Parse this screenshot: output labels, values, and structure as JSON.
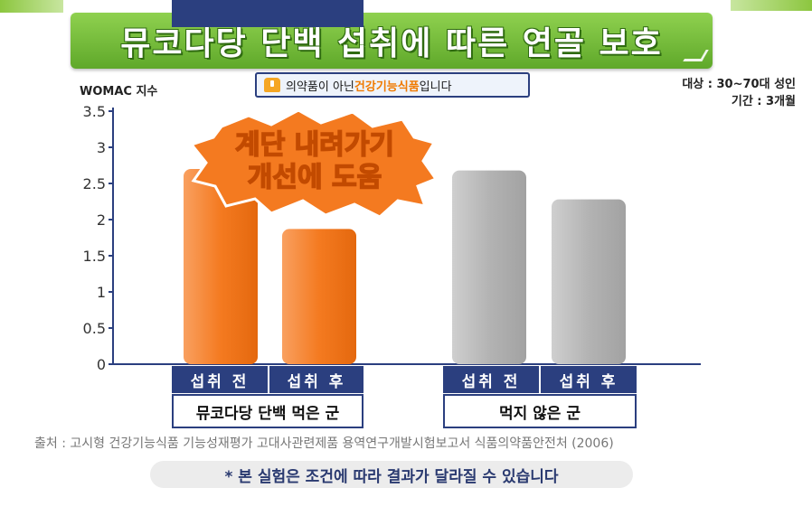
{
  "title": "뮤코다당 단백 섭취에 따른 연골 보호",
  "notice": {
    "pre": "의약품이 아닌 ",
    "highlight": "건강기능식품",
    "post": "입니다"
  },
  "info": {
    "subjects": "대상 : 30~70대 성인",
    "period": "기간 : 3개월"
  },
  "colors": {
    "orange": "#f47a20",
    "gray": "#b0b0b0",
    "navy": "#2b3f7f",
    "green": "#6cbf3a"
  },
  "chart_data": {
    "type": "bar",
    "ylabel": "WOMAC 지수",
    "ylim": [
      0,
      3.5
    ],
    "yticks": [
      "0",
      "0.5",
      "1",
      "1.5",
      "2",
      "2.5",
      "3",
      "3.5"
    ],
    "categories": [
      "섭취 전",
      "섭취 후",
      "섭취 전",
      "섭취 후"
    ],
    "values": [
      2.7,
      1.87,
      2.68,
      2.28
    ],
    "groups": [
      {
        "name": "뮤코다당 단백 먹은 군",
        "color": "orange"
      },
      {
        "name": "먹지 않은 군",
        "color": "gray"
      }
    ],
    "annotation": [
      "계단 내려가기",
      "개선에 도움"
    ],
    "grid": false
  },
  "source": "출처 : 고시형 건강기능식품 기능성재평가 고대사관련제품 용역연구개발시험보고서 식품의약품안전처 (2006)",
  "disclaimer": "* 본 실험은 조건에 따라 결과가 달라질 수 있습니다"
}
